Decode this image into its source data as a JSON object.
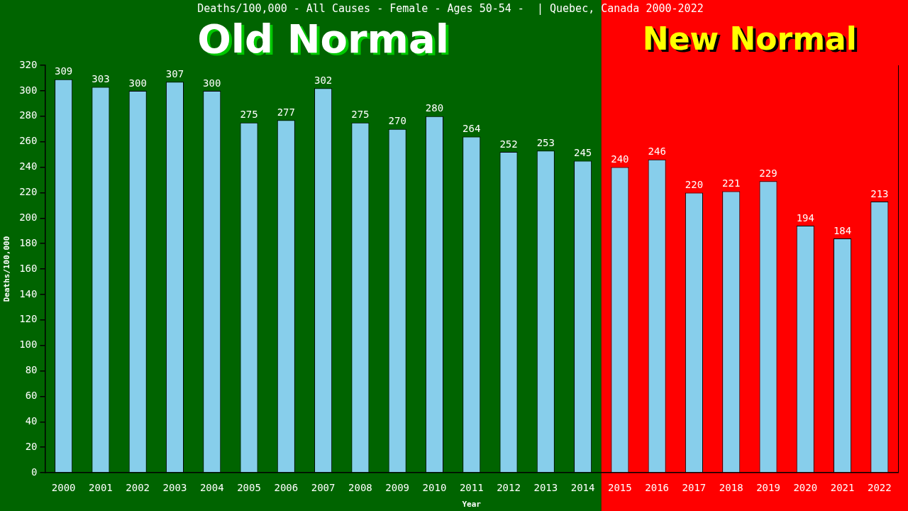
{
  "chart_data": {
    "type": "bar",
    "title": "Deaths/100,000 - All Causes - Female - Ages 50-54 -  | Quebec, Canada 2000-2022",
    "xlabel": "Year",
    "ylabel": "Deaths/100,000",
    "categories": [
      "2000",
      "2001",
      "2002",
      "2003",
      "2004",
      "2005",
      "2006",
      "2007",
      "2008",
      "2009",
      "2010",
      "2011",
      "2012",
      "2013",
      "2014",
      "2015",
      "2016",
      "2017",
      "2018",
      "2019",
      "2020",
      "2021",
      "2022"
    ],
    "values": [
      309,
      303,
      300,
      307,
      300,
      275,
      277,
      302,
      275,
      270,
      280,
      264,
      252,
      253,
      245,
      240,
      246,
      220,
      221,
      229,
      194,
      184,
      213
    ],
    "color": "#87ceeb",
    "ylim": [
      0,
      320
    ],
    "yticks": [
      0,
      20,
      40,
      60,
      80,
      100,
      120,
      140,
      160,
      180,
      200,
      220,
      240,
      260,
      280,
      300,
      320
    ],
    "data_labels": true,
    "bands": [
      {
        "axis": "x",
        "from": "2000",
        "to": "2014",
        "label": "Old Normal",
        "color": "#006400"
      },
      {
        "axis": "x",
        "from": "2015",
        "to": "2022",
        "label": "New Normal",
        "color": "#ff0000"
      }
    ]
  }
}
